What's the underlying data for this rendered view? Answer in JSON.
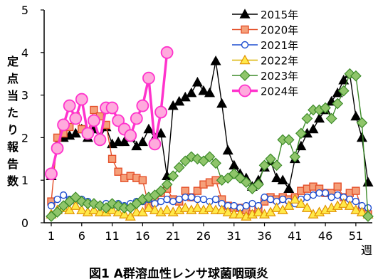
{
  "chart_data": {
    "type": "line",
    "title": "図1 A群溶血性レンサ球菌咽頭炎",
    "ylabel": "定点当たり報告数",
    "xlabel": "週",
    "ylim": [
      0,
      5
    ],
    "xlim": [
      1,
      53
    ],
    "yticks": [
      "0",
      "1",
      "2",
      "3",
      "4",
      "5"
    ],
    "xticks": [
      {
        "value": 1,
        "label": "1"
      },
      {
        "value": 6,
        "label": "6"
      },
      {
        "value": 11,
        "label": "11"
      },
      {
        "value": 16,
        "label": "16"
      },
      {
        "value": 21,
        "label": "21"
      },
      {
        "value": 26,
        "label": "26"
      },
      {
        "value": 31,
        "label": "31"
      },
      {
        "value": 36,
        "label": "36"
      },
      {
        "value": 41,
        "label": "41"
      },
      {
        "value": 46,
        "label": "46"
      },
      {
        "value": 51,
        "label": "51"
      }
    ],
    "grid": false,
    "legend_position": "top-right",
    "series": [
      {
        "name": "2015年",
        "color": "#000000",
        "marker": "triangle",
        "values": [
          1.1,
          1.85,
          2.0,
          2.05,
          2.1,
          2.2,
          2.0,
          2.2,
          2.0,
          2.25,
          1.85,
          1.9,
          1.9,
          2.0,
          1.8,
          1.9,
          2.2,
          2.0,
          2.1,
          1.1,
          2.75,
          2.85,
          2.95,
          3.05,
          3.3,
          3.1,
          3.05,
          3.8,
          2.8,
          1.7,
          1.35,
          1.15,
          1.05,
          0.85,
          1.0,
          1.3,
          1.45,
          1.05,
          1.0,
          0.8,
          1.5,
          1.8,
          2.1,
          2.2,
          2.45,
          2.65,
          2.85,
          3.05,
          3.35,
          3.5,
          2.5,
          2.0,
          0.95
        ]
      },
      {
        "name": "2020年",
        "color": "#e4502a",
        "marker": "square",
        "values": [
          0.5,
          2.0,
          2.1,
          2.25,
          2.5,
          2.2,
          2.1,
          2.65,
          2.5,
          2.3,
          1.5,
          1.2,
          1.05,
          1.1,
          1.05,
          1.0,
          0.4,
          0.5,
          0.7,
          0.8,
          0.55,
          0.5,
          0.75,
          0.6,
          0.75,
          0.9,
          0.95,
          1.0,
          0.55,
          0.4,
          0.35,
          0.35,
          0.3,
          0.2,
          0.3,
          0.5,
          0.6,
          0.55,
          0.6,
          0.55,
          0.6,
          0.75,
          0.8,
          0.85,
          0.8,
          0.7,
          0.7,
          0.85,
          0.6,
          0.7,
          0.75,
          0.3,
          0.2
        ]
      },
      {
        "name": "2021年",
        "color": "#1f4fd0",
        "marker": "circle",
        "values": [
          0.4,
          0.55,
          0.65,
          0.55,
          0.5,
          0.55,
          0.5,
          0.45,
          0.4,
          0.45,
          0.4,
          0.45,
          0.4,
          0.45,
          0.5,
          0.5,
          0.55,
          0.45,
          0.5,
          0.55,
          0.5,
          0.55,
          0.6,
          0.6,
          0.55,
          0.55,
          0.5,
          0.55,
          0.45,
          0.4,
          0.4,
          0.35,
          0.4,
          0.45,
          0.4,
          0.6,
          0.55,
          0.5,
          0.55,
          0.5,
          0.45,
          0.55,
          0.6,
          0.65,
          0.7,
          0.7,
          0.6,
          0.65,
          0.6,
          0.55,
          0.5,
          0.4,
          0.35
        ]
      },
      {
        "name": "2022年",
        "color": "#d9b400",
        "marker": "triangle",
        "values": [
          0.2,
          0.3,
          0.35,
          0.3,
          0.4,
          0.3,
          0.25,
          0.3,
          0.25,
          0.25,
          0.3,
          0.25,
          0.2,
          0.15,
          0.25,
          0.25,
          0.35,
          0.3,
          0.25,
          0.3,
          0.25,
          0.3,
          0.35,
          0.3,
          0.35,
          0.3,
          0.35,
          0.3,
          0.3,
          0.25,
          0.2,
          0.2,
          0.15,
          0.2,
          0.25,
          0.2,
          0.25,
          0.35,
          0.3,
          0.4,
          0.55,
          0.45,
          0.35,
          0.2,
          0.25,
          0.3,
          0.35,
          0.4,
          0.45,
          0.4,
          0.3,
          0.25,
          0.2
        ]
      },
      {
        "name": "2023年",
        "color": "#3d8b2a",
        "marker": "diamond",
        "values": [
          0.15,
          0.25,
          0.4,
          0.5,
          0.6,
          0.5,
          0.45,
          0.45,
          0.4,
          0.35,
          0.45,
          0.4,
          0.35,
          0.35,
          0.45,
          0.55,
          0.6,
          0.65,
          0.75,
          0.9,
          1.1,
          1.3,
          1.45,
          1.55,
          1.5,
          1.45,
          1.55,
          1.4,
          1.0,
          1.05,
          1.15,
          1.05,
          0.95,
          0.8,
          0.9,
          1.35,
          1.5,
          1.35,
          1.95,
          1.95,
          1.55,
          2.1,
          2.45,
          2.65,
          2.65,
          2.7,
          2.45,
          2.8,
          3.1,
          3.5,
          3.45,
          2.35,
          0.15
        ]
      },
      {
        "name": "2024年",
        "color": "#ff33cc",
        "marker": "circle-large",
        "values": [
          1.15,
          1.75,
          2.3,
          2.75,
          2.45,
          2.9,
          2.1,
          2.4,
          1.95,
          2.7,
          2.7,
          2.4,
          2.2,
          2.05,
          2.45,
          2.75,
          3.4,
          1.85,
          2.6,
          4.0
        ]
      }
    ]
  }
}
